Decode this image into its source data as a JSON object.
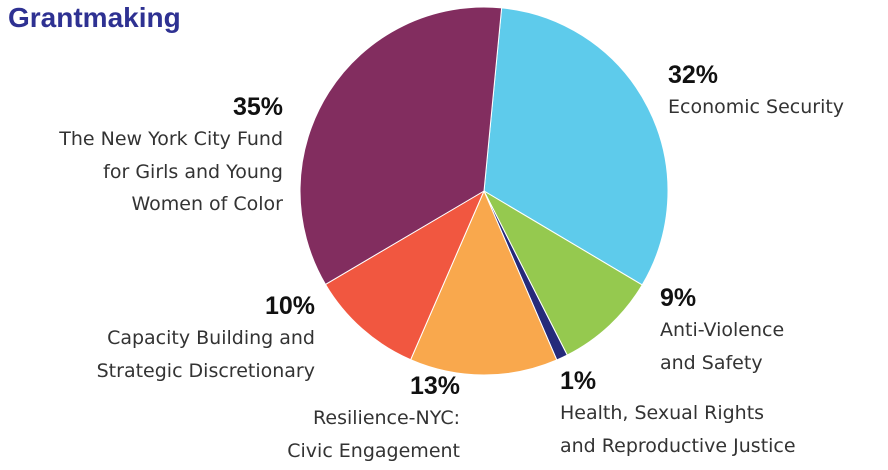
{
  "chart_data": {
    "type": "pie",
    "title": "Grantmaking",
    "categories": [
      "Economic Security",
      "Anti-Violence\nand Safety",
      "Health, Sexual Rights\nand Reproductive Justice",
      "Resilience-NYC:\nCivic Engagement",
      "Capacity Building and\nStrategic Discretionary",
      "The New York City Fund\nfor Girls and Young\nWomen of Color"
    ],
    "values": [
      32,
      9,
      1,
      13,
      10,
      35
    ],
    "value_labels": [
      "32%",
      "9%",
      "1%",
      "13%",
      "10%",
      "35%"
    ],
    "colors": [
      "#5ecbeb",
      "#95c94f",
      "#252a7a",
      "#f9a84d",
      "#f15740",
      "#822d5f"
    ]
  }
}
